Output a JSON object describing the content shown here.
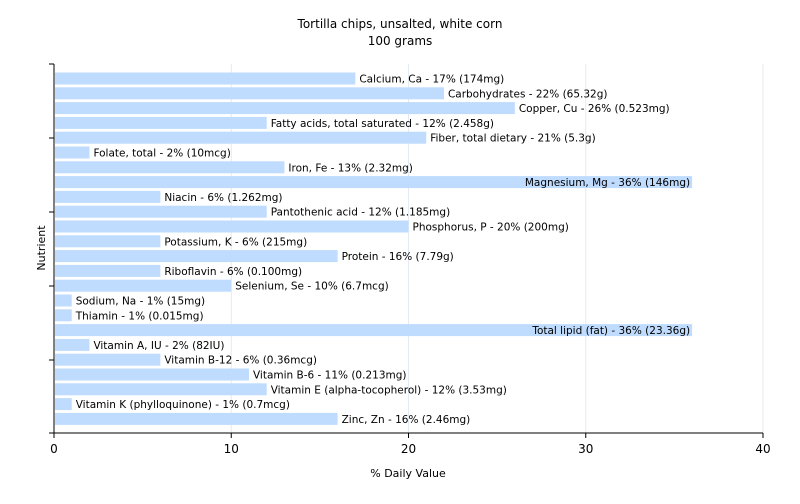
{
  "chart_data": {
    "type": "bar",
    "orientation": "horizontal",
    "title": "Tortilla chips, unsalted, white corn",
    "subtitle": "100 grams",
    "xlabel": "% Daily Value",
    "ylabel": "Nutrient",
    "xlim": [
      0,
      40
    ],
    "xticks": [
      "0",
      "10",
      "20",
      "30",
      "40"
    ],
    "grid": true,
    "bar_color": "#bfdcff",
    "grid_color": "#e4e9f2",
    "categories": [
      "Calcium, Ca",
      "Carbohydrates",
      "Copper, Cu",
      "Fatty acids, total saturated",
      "Fiber, total dietary",
      "Folate, total",
      "Iron, Fe",
      "Magnesium, Mg",
      "Niacin",
      "Pantothenic acid",
      "Phosphorus, P",
      "Potassium, K",
      "Protein",
      "Riboflavin",
      "Selenium, Se",
      "Sodium, Na",
      "Thiamin",
      "Total lipid (fat)",
      "Vitamin A, IU",
      "Vitamin B-12",
      "Vitamin B-6",
      "Vitamin E (alpha-tocopherol)",
      "Vitamin K (phylloquinone)",
      "Zinc, Zn"
    ],
    "values": [
      17,
      22,
      26,
      12,
      21,
      2,
      13,
      36,
      6,
      12,
      20,
      6,
      16,
      6,
      10,
      1,
      1,
      36,
      2,
      6,
      11,
      12,
      1,
      16
    ],
    "labels": [
      "Calcium, Ca - 17% (174mg)",
      "Carbohydrates - 22% (65.32g)",
      "Copper, Cu - 26% (0.523mg)",
      "Fatty acids, total saturated - 12% (2.458g)",
      "Fiber, total dietary - 21% (5.3g)",
      "Folate, total - 2% (10mcg)",
      "Iron, Fe - 13% (2.32mg)",
      "Magnesium, Mg - 36% (146mg)",
      "Niacin - 6% (1.262mg)",
      "Pantothenic acid - 12% (1.185mg)",
      "Phosphorus, P - 20% (200mg)",
      "Potassium, K - 6% (215mg)",
      "Protein - 16% (7.79g)",
      "Riboflavin - 6% (0.100mg)",
      "Selenium, Se - 10% (6.7mcg)",
      "Sodium, Na - 1% (15mg)",
      "Thiamin - 1% (0.015mg)",
      "Total lipid (fat) - 36% (23.36g)",
      "Vitamin A, IU - 2% (82IU)",
      "Vitamin B-12 - 6% (0.36mcg)",
      "Vitamin B-6 - 11% (0.213mg)",
      "Vitamin E (alpha-tocopherol) - 12% (3.53mg)",
      "Vitamin K (phylloquinone) - 1% (0.7mcg)",
      "Zinc, Zn - 16% (2.46mg)"
    ]
  }
}
